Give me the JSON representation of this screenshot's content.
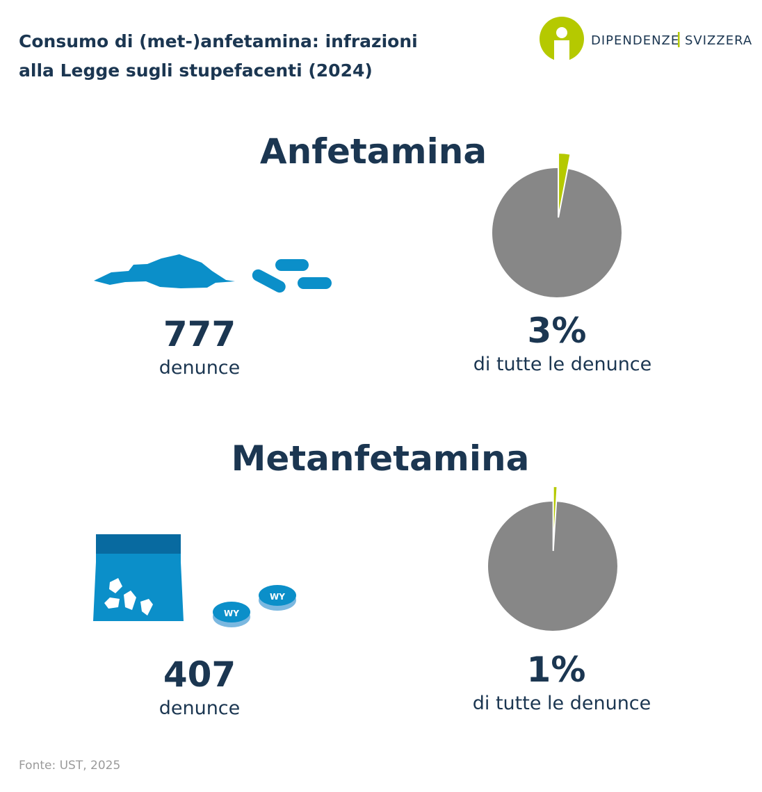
{
  "title_lines": [
    "Consumo di (met-)anfetamina: infrazioni",
    "alla Legge sugli stupefacenti (2024)"
  ],
  "logo": {
    "left": "DIPENDENZE",
    "right": "SVIZZERA"
  },
  "source": "Fonte: UST, 2025",
  "chart_data": [
    {
      "type": "pie",
      "title": "Anfetamina",
      "values": [
        3
      ],
      "value_labels": [
        "3%"
      ],
      "colors": [
        "#b5c900"
      ],
      "rest_color": "#878787",
      "caption": "di tutte le denunce",
      "count": 777,
      "count_label": "denunce"
    },
    {
      "type": "pie",
      "title": "Metanfetamina",
      "values": [
        1
      ],
      "value_labels": [
        "1%"
      ],
      "colors": [
        "#b5c900"
      ],
      "rest_color": "#878787",
      "caption": "di tutte le denunce",
      "count": 407,
      "count_label": "denunce"
    }
  ]
}
